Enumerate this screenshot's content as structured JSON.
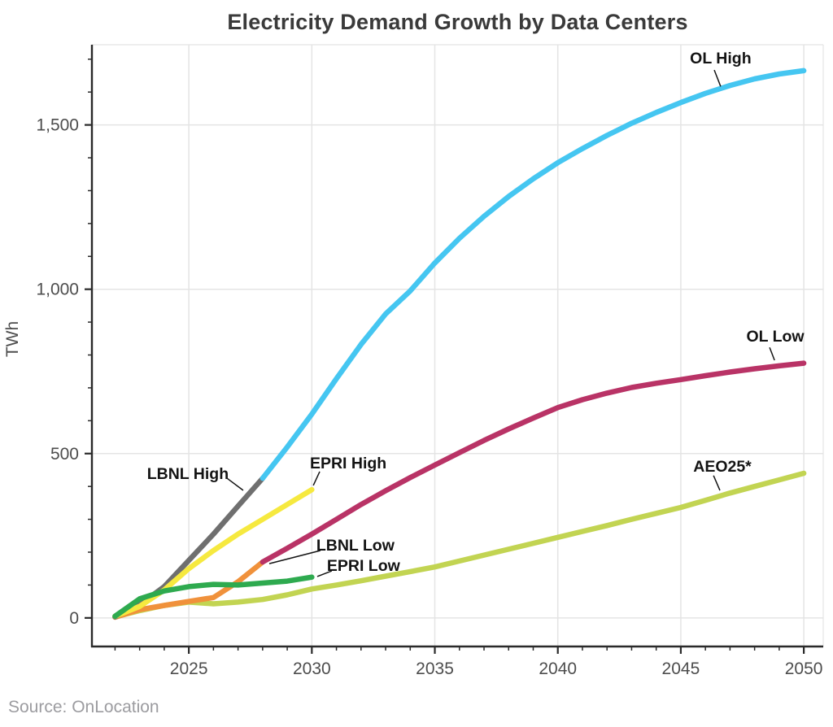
{
  "title": "Electricity Demand Growth by Data Centers",
  "source": "Source: OnLocation",
  "colors": {
    "grid": "#e4e4e4",
    "spine": "#2a2a2a",
    "tick_label": "#4d4d4d",
    "title": "#3a3a3a",
    "annotation": "#141414",
    "source": "#9c9ca0",
    "background": "#ffffff"
  },
  "chart_data": {
    "type": "line",
    "title": "Electricity Demand Growth by Data Centers",
    "xlabel": "",
    "ylabel": "TWh",
    "grid": true,
    "legend": "none (direct line labels)",
    "xlim": [
      2021.06,
      2050.79
    ],
    "ylim": [
      -87,
      1744
    ],
    "x_ticks_major": [
      2025,
      2030,
      2035,
      2040,
      2045,
      2050
    ],
    "x_tick_labels": [
      "2025",
      "2030",
      "2035",
      "2040",
      "2045",
      "2050"
    ],
    "x_ticks_minor": [
      2022,
      2023,
      2024,
      2026,
      2027,
      2028,
      2029,
      2031,
      2032,
      2033,
      2034,
      2036,
      2037,
      2038,
      2039,
      2041,
      2042,
      2043,
      2044,
      2046,
      2047,
      2048,
      2049
    ],
    "y_ticks_major": [
      0,
      500,
      1000,
      1500
    ],
    "y_tick_labels": [
      "0",
      "500",
      "1,000",
      "1,500"
    ],
    "y_ticks_minor": [
      100,
      200,
      300,
      400,
      600,
      700,
      800,
      900,
      1100,
      1200,
      1300,
      1400,
      1600,
      1700
    ],
    "series": [
      {
        "name": "AEO25*",
        "color": "#c2d452",
        "points": [
          [
            2022,
            3
          ],
          [
            2023,
            22
          ],
          [
            2024,
            38
          ],
          [
            2025,
            48
          ],
          [
            2026,
            43
          ],
          [
            2027,
            48
          ],
          [
            2028,
            56
          ],
          [
            2029,
            70
          ],
          [
            2030,
            88
          ],
          [
            2031,
            100
          ],
          [
            2032,
            113
          ],
          [
            2033,
            127
          ],
          [
            2034,
            141
          ],
          [
            2035,
            155
          ],
          [
            2036,
            173
          ],
          [
            2037,
            191
          ],
          [
            2038,
            209
          ],
          [
            2039,
            227
          ],
          [
            2040,
            245
          ],
          [
            2041,
            263
          ],
          [
            2042,
            281
          ],
          [
            2043,
            300
          ],
          [
            2044,
            318
          ],
          [
            2045,
            336
          ],
          [
            2046,
            358
          ],
          [
            2047,
            380
          ],
          [
            2048,
            400
          ],
          [
            2049,
            420
          ],
          [
            2050,
            440
          ]
        ]
      },
      {
        "name": "LBNL Low",
        "color": "#f0913b",
        "points": [
          [
            2022,
            2
          ],
          [
            2023,
            25
          ],
          [
            2024,
            38
          ],
          [
            2025,
            50
          ],
          [
            2026,
            62
          ],
          [
            2027,
            110
          ],
          [
            2028,
            170
          ]
        ]
      },
      {
        "name": "LBNL High",
        "color": "#6f6f6f",
        "points": [
          [
            2022,
            3
          ],
          [
            2023,
            40
          ],
          [
            2024,
            95
          ],
          [
            2025,
            175
          ],
          [
            2026,
            255
          ],
          [
            2027,
            340
          ],
          [
            2028,
            425
          ]
        ]
      },
      {
        "name": "EPRI High",
        "color": "#f6e93f",
        "points": [
          [
            2022,
            5
          ],
          [
            2023,
            35
          ],
          [
            2024,
            85
          ],
          [
            2025,
            150
          ],
          [
            2026,
            205
          ],
          [
            2027,
            255
          ],
          [
            2028,
            300
          ],
          [
            2029,
            345
          ],
          [
            2030,
            390
          ]
        ]
      },
      {
        "name": "EPRI Low",
        "color": "#2eaa4f",
        "points": [
          [
            2022,
            5
          ],
          [
            2023,
            58
          ],
          [
            2024,
            82
          ],
          [
            2025,
            95
          ],
          [
            2026,
            102
          ],
          [
            2027,
            100
          ],
          [
            2028,
            106
          ],
          [
            2029,
            112
          ],
          [
            2030,
            124
          ]
        ]
      },
      {
        "name": "OL Low",
        "color": "#b93366",
        "points": [
          [
            2028,
            170
          ],
          [
            2029,
            212
          ],
          [
            2030,
            255
          ],
          [
            2031,
            300
          ],
          [
            2032,
            345
          ],
          [
            2033,
            387
          ],
          [
            2034,
            427
          ],
          [
            2035,
            465
          ],
          [
            2036,
            503
          ],
          [
            2037,
            540
          ],
          [
            2038,
            575
          ],
          [
            2039,
            608
          ],
          [
            2040,
            640
          ],
          [
            2041,
            664
          ],
          [
            2042,
            684
          ],
          [
            2043,
            701
          ],
          [
            2044,
            714
          ],
          [
            2045,
            725
          ],
          [
            2046,
            737
          ],
          [
            2047,
            748
          ],
          [
            2048,
            758
          ],
          [
            2049,
            767
          ],
          [
            2050,
            775
          ]
        ]
      },
      {
        "name": "OL High",
        "color": "#45c6f1",
        "points": [
          [
            2028,
            425
          ],
          [
            2029,
            520
          ],
          [
            2030,
            620
          ],
          [
            2031,
            728
          ],
          [
            2032,
            832
          ],
          [
            2033,
            925
          ],
          [
            2034,
            995
          ],
          [
            2035,
            1080
          ],
          [
            2036,
            1155
          ],
          [
            2037,
            1222
          ],
          [
            2038,
            1282
          ],
          [
            2039,
            1336
          ],
          [
            2040,
            1385
          ],
          [
            2041,
            1428
          ],
          [
            2042,
            1468
          ],
          [
            2043,
            1505
          ],
          [
            2044,
            1538
          ],
          [
            2045,
            1568
          ],
          [
            2046,
            1596
          ],
          [
            2047,
            1620
          ],
          [
            2048,
            1640
          ],
          [
            2049,
            1655
          ],
          [
            2050,
            1665
          ]
        ]
      }
    ],
    "annotations": [
      {
        "text": "OL High",
        "x": 2046.62,
        "y": 1704,
        "leader": [
          2046.36,
          1667,
          2046.62,
          1617
        ]
      },
      {
        "text": "OL Low",
        "x": 2048.84,
        "y": 858,
        "leader": [
          2048.61,
          823,
          2048.81,
          784
        ]
      },
      {
        "text": "AEO25*",
        "x": 2046.69,
        "y": 462,
        "leader": [
          2046.33,
          433,
          2046.59,
          388
        ]
      },
      {
        "text": "LBNL High",
        "x": 2024.96,
        "y": 440,
        "leader": [
          2026.55,
          425,
          2027.21,
          388
        ]
      },
      {
        "text": "EPRI High",
        "x": 2031.48,
        "y": 472,
        "leader": [
          2030.32,
          445,
          2030.06,
          403
        ]
      },
      {
        "text": "LBNL Low",
        "x": 2031.77,
        "y": 222,
        "leader": [
          2030.35,
          205,
          2028.27,
          165
        ]
      },
      {
        "text": "EPRI Low",
        "x": 2032.1,
        "y": 160,
        "leader": [
          2030.81,
          143,
          2030.22,
          126
        ]
      }
    ]
  }
}
